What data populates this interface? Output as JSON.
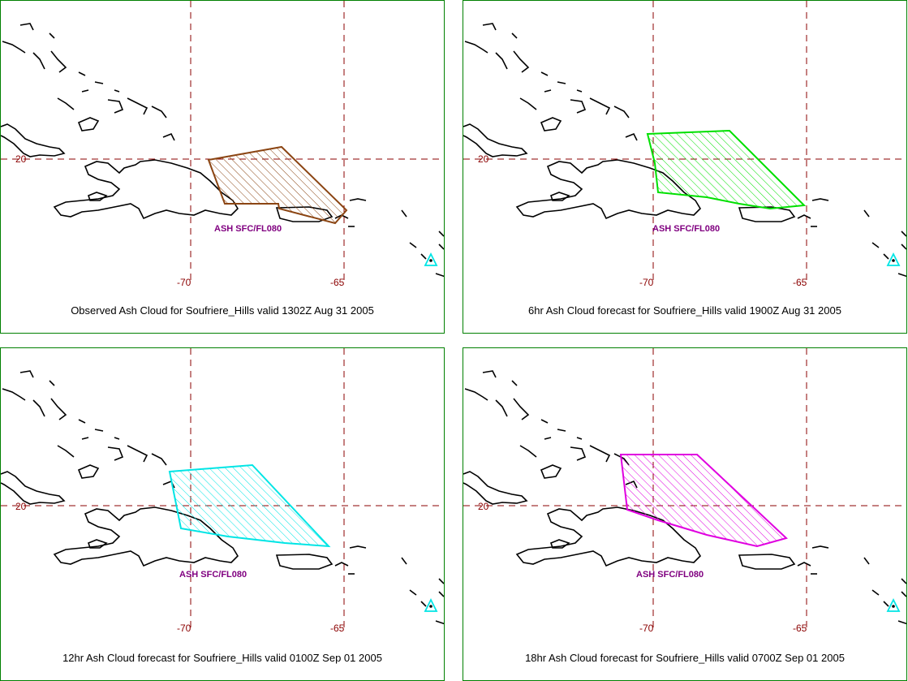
{
  "grid": {
    "color": "#8b0000",
    "lat_label": "20",
    "lon_labels": [
      "-70",
      "-65"
    ]
  },
  "panels": [
    {
      "caption": "Observed Ash Cloud for Soufriere_Hills valid 1302Z Aug 31 2005",
      "ash_label": "ASH SFC/FL080",
      "ash_color": "#8b4513"
    },
    {
      "caption": "6hr Ash Cloud forecast for Soufriere_Hills valid 1900Z Aug 31 2005",
      "ash_label": "ASH SFC/FL080",
      "ash_color": "#00e000"
    },
    {
      "caption": "12hr Ash Cloud forecast for Soufriere_Hills valid 0100Z Sep 01 2005",
      "ash_label": "ASH SFC/FL080",
      "ash_color": "#00e5e5"
    },
    {
      "caption": "18hr Ash Cloud forecast for Soufriere_Hills valid 0700Z Sep 01 2005",
      "ash_label": "ASH SFC/FL080",
      "ash_color": "#e000e0"
    }
  ],
  "volcano_marker_color": "#00e5e5",
  "label_color": "#800080"
}
